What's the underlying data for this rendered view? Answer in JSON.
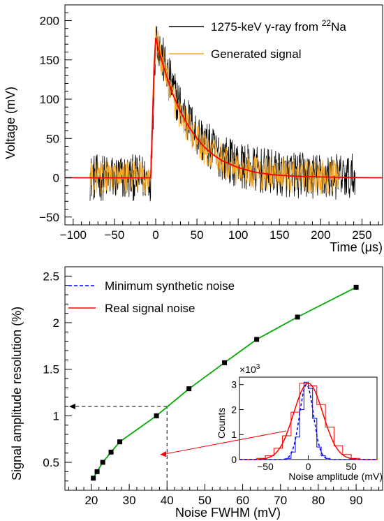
{
  "chart_data": [
    {
      "type": "line",
      "xlabel": "Time (μs)",
      "ylabel": "Voltage (mV)",
      "xlim": [
        -110,
        275
      ],
      "ylim": [
        -60,
        220
      ],
      "xticks": [
        -100,
        -50,
        0,
        50,
        100,
        150,
        200,
        250
      ],
      "yticks": [
        -50,
        0,
        50,
        100,
        150,
        200
      ],
      "legend_position": "top-right",
      "series": [
        {
          "name": "1275-keV γ-ray from ²²Na",
          "color": "#000000",
          "kind": "noisy-waveform",
          "x_range": [
            -80,
            242
          ],
          "baseline": 0,
          "noise_amplitude": 30,
          "rise_start": -6,
          "peak_time": 0,
          "peak_value": 185,
          "decay_constant": 42
        },
        {
          "name": "Generated signal",
          "color": "#f5a623",
          "kind": "noisy-waveform",
          "x_range": [
            -80,
            222
          ],
          "baseline": 0,
          "noise_amplitude": 22,
          "rise_start": -6,
          "peak_time": 0,
          "peak_value": 180,
          "decay_constant": 38
        },
        {
          "name": "",
          "color": "#ff0000",
          "kind": "fit",
          "x": [
            -110,
            -6,
            -4,
            -2,
            0,
            5,
            10,
            20,
            30,
            40,
            50,
            60,
            70,
            80,
            100,
            120,
            140,
            160,
            180,
            200,
            240,
            275
          ],
          "y": [
            0,
            0,
            70,
            140,
            178,
            158,
            140,
            108,
            84,
            65,
            50,
            38,
            29,
            22,
            13,
            7,
            4,
            2.5,
            1.5,
            1,
            0.3,
            0
          ]
        }
      ]
    },
    {
      "type": "line",
      "xlabel": "Noise FWHM (mV)",
      "ylabel": "Signal amplitude resolution (%)",
      "xlim": [
        13,
        97
      ],
      "ylim": [
        0.2,
        2.6
      ],
      "xticks": [
        20,
        30,
        40,
        50,
        60,
        70,
        80,
        90
      ],
      "yticks": [
        0.5,
        1,
        1.5,
        2,
        2.5
      ],
      "legend_position": "top-left",
      "legend": [
        {
          "name": "Minimum synthetic noise",
          "color": "#0000ff",
          "style": "dashed"
        },
        {
          "name": "Real signal noise",
          "color": "#ff0000",
          "style": "solid"
        }
      ],
      "series": [
        {
          "color": "#00aa00",
          "x": [
            20.5,
            21.5,
            23,
            25.2,
            27.5,
            37.2,
            45.8,
            55.2,
            63.7,
            74.5,
            90
          ],
          "y": [
            0.33,
            0.4,
            0.5,
            0.61,
            0.72,
            1.0,
            1.29,
            1.57,
            1.82,
            2.06,
            2.38
          ]
        }
      ],
      "guides": {
        "x": 40,
        "y": 1.1,
        "color": "#000000",
        "style": "dashed"
      },
      "inset": {
        "type": "histogram",
        "xlabel": "Noise amplitude (mV)",
        "ylabel": "Counts",
        "multiplier_label": "×10",
        "multiplier_exp": "3",
        "xlim": [
          -80,
          80
        ],
        "ylim": [
          0,
          3.3
        ],
        "xticks": [
          -50,
          0,
          50
        ],
        "yticks": [
          0,
          1,
          2,
          3
        ],
        "red_hist": {
          "color": "#ff0000",
          "bin_edges": [
            -60,
            -50,
            -40,
            -30,
            -20,
            -10,
            0,
            10,
            20,
            30,
            40,
            50,
            60
          ],
          "counts": [
            0.05,
            0.15,
            0.45,
            0.95,
            1.9,
            3.05,
            2.95,
            2.2,
            1.3,
            0.55,
            0.2,
            0.05
          ]
        },
        "red_fit": {
          "color": "#ff0000",
          "mean": 0,
          "sigma": 17,
          "amp": 3.05
        },
        "blue_hist": {
          "color": "#0000ff",
          "bin_edges": [
            -25,
            -20,
            -15,
            -10,
            -5,
            0,
            5,
            10,
            15,
            20,
            25
          ],
          "counts": [
            0.05,
            0.3,
            0.9,
            2.0,
            3.1,
            2.85,
            1.65,
            0.5,
            0.15,
            0.05
          ]
        },
        "blue_fit": {
          "color": "#0000ff",
          "mean": -2,
          "sigma": 8,
          "amp": 3.0
        }
      }
    }
  ]
}
